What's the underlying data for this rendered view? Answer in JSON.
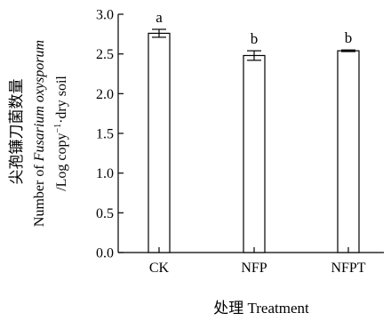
{
  "chart_data": {
    "type": "bar",
    "categories": [
      "CK",
      "NFP",
      "NFPT"
    ],
    "values": [
      2.76,
      2.48,
      2.54
    ],
    "errors": [
      0.05,
      0.06,
      0.01
    ],
    "significance": [
      "a",
      "b",
      "b"
    ],
    "ylim": [
      0,
      3.0
    ],
    "y_ticks": [
      "0.0",
      "0.5",
      "1.0",
      "1.5",
      "2.0",
      "2.5",
      "3.0"
    ],
    "xlabel": "处理 Treatment",
    "ylabel": {
      "line1": "尖孢镰刀菌数量",
      "line2_prefix": "Number of ",
      "line2_italic": "Fusarium oxysporum",
      "line3_prefix": "/Log copy",
      "line3_superscript": "−1",
      "line3_suffix": "·dry soil"
    },
    "grid": false,
    "bar_fill": "#ffffff",
    "bar_stroke": "#000000"
  }
}
